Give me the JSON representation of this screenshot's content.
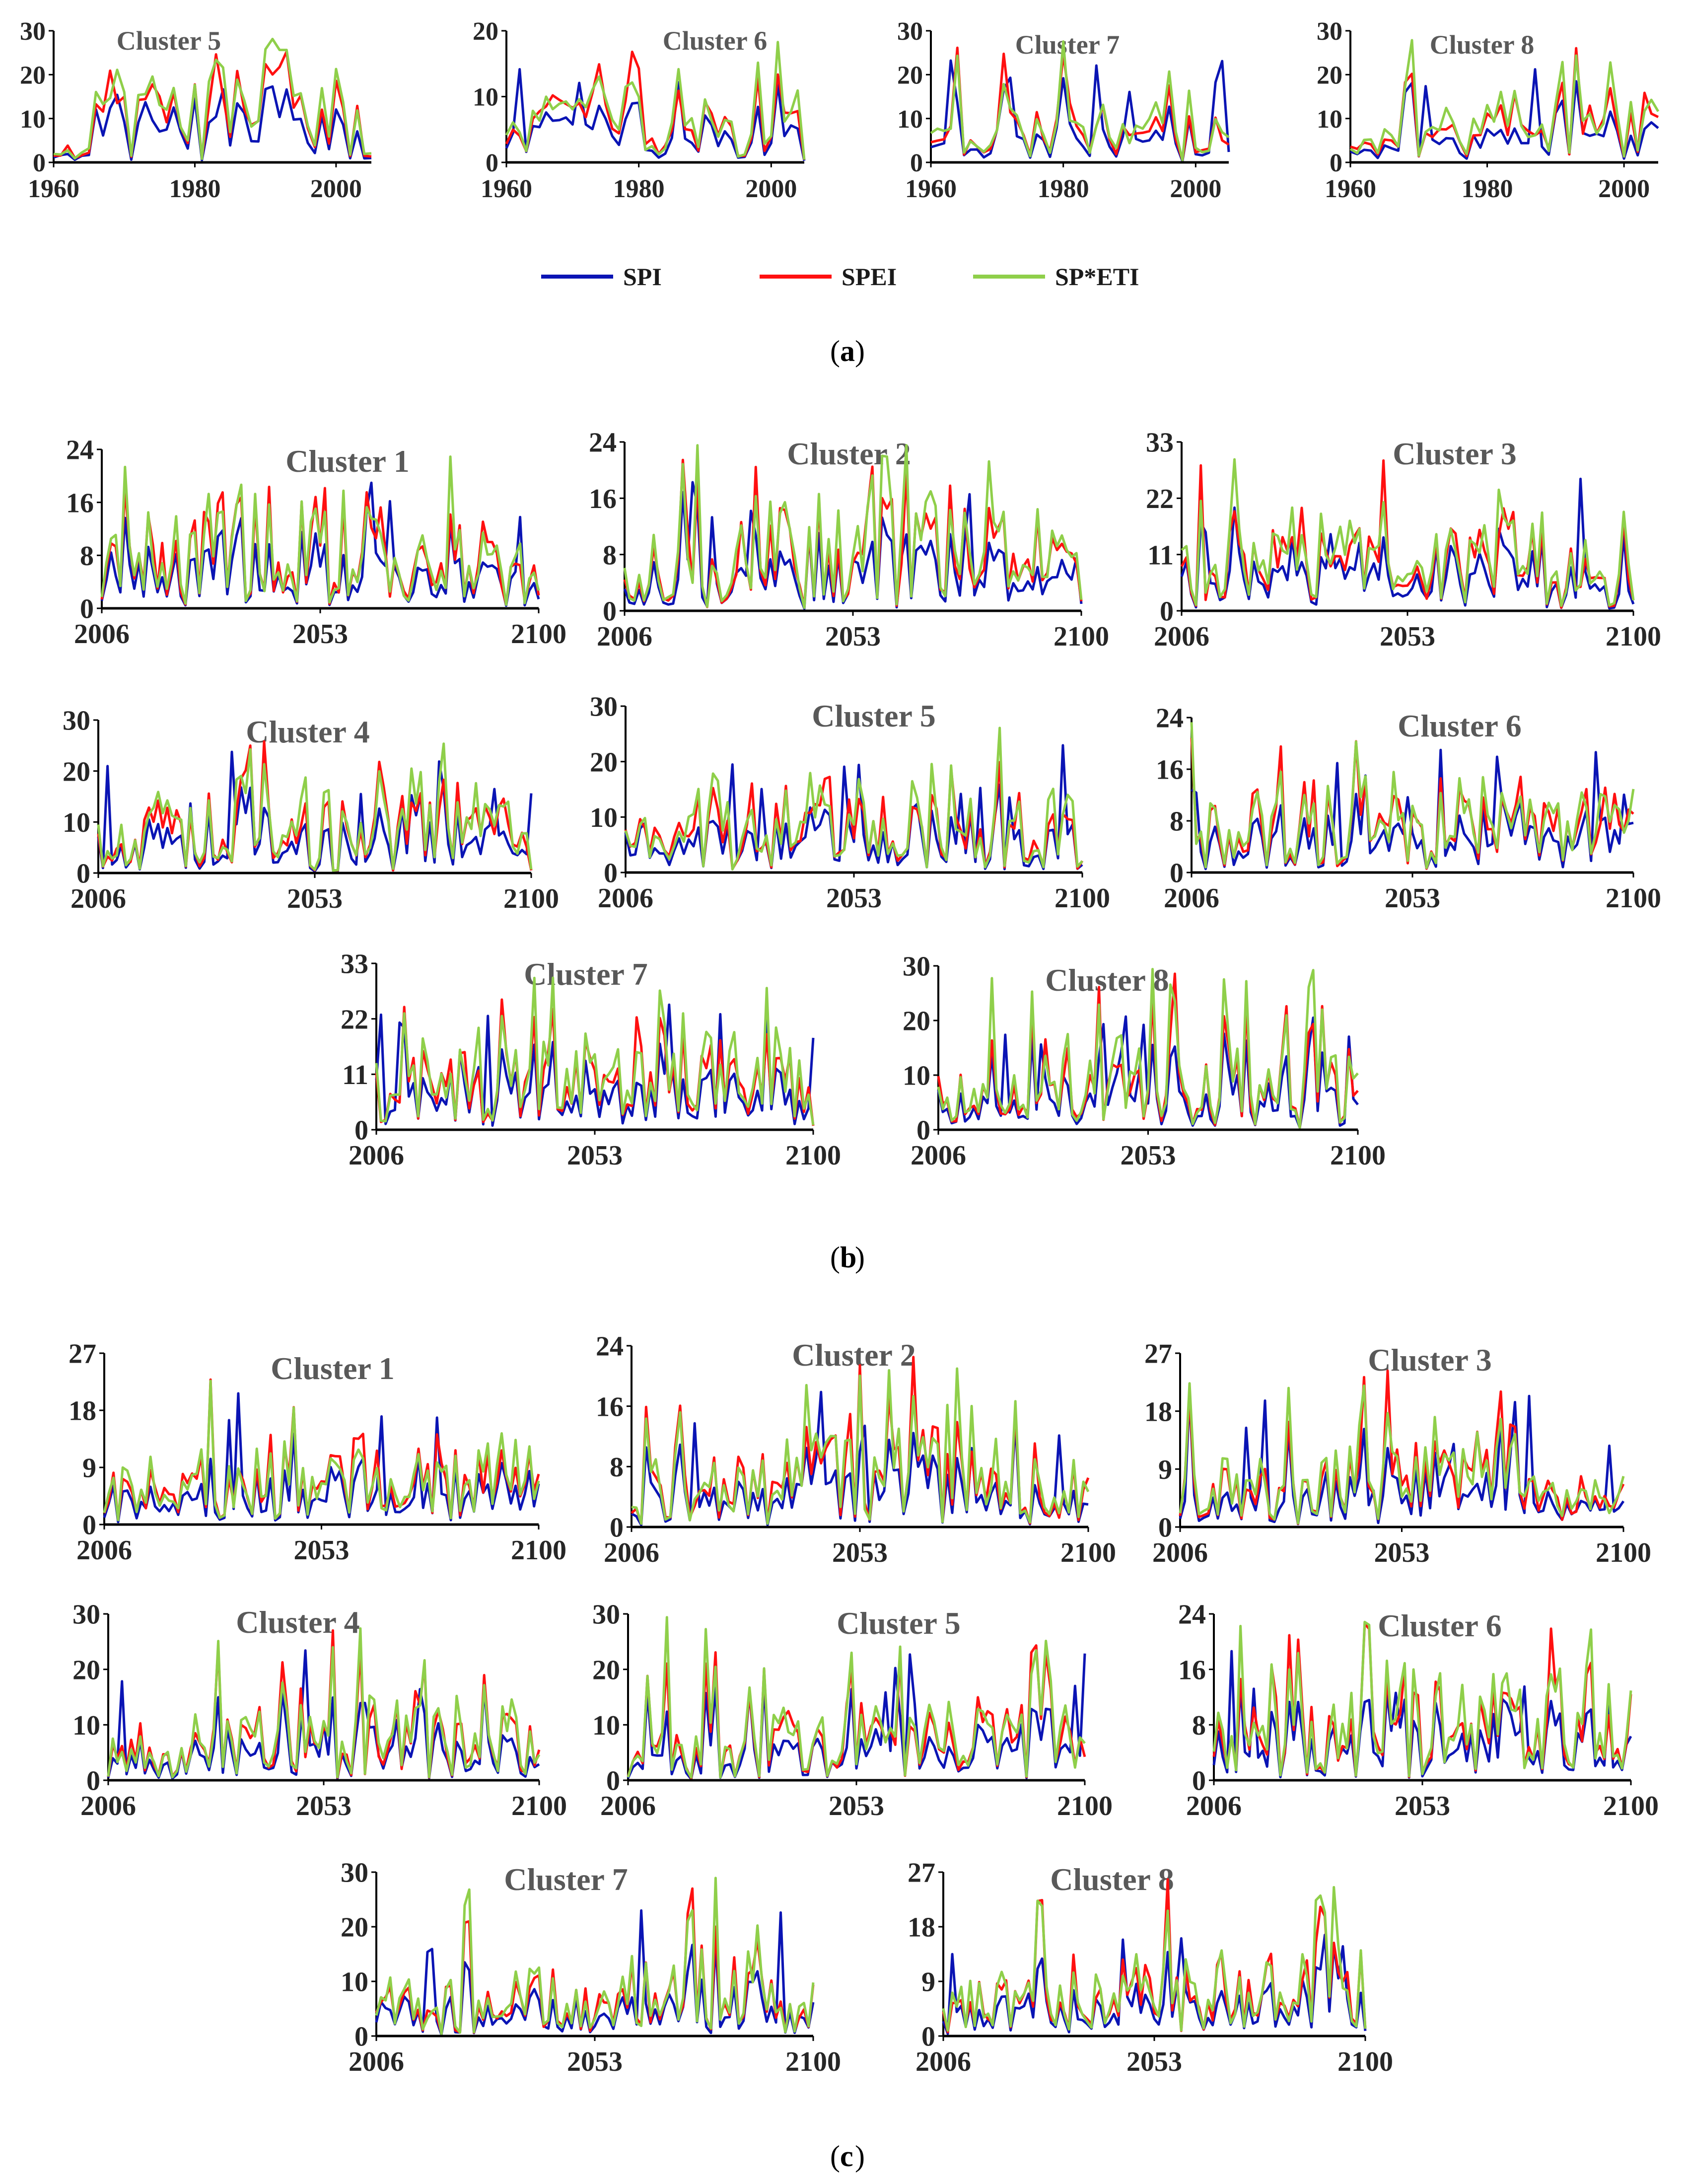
{
  "series_names": [
    "SPI",
    "SPEI",
    "SP*ETI"
  ],
  "series_colors": {
    "SPI": "#0a14b4",
    "SPEI": "#ff1010",
    "SP*ETI": "#8fcf4a"
  },
  "panel_labels": [
    "a",
    "b",
    "c"
  ],
  "chart_data": [
    {
      "type": "line",
      "panel": "a",
      "title": "Cluster 5",
      "ylim": [
        0,
        30
      ],
      "yticks": [
        0,
        10,
        20,
        30
      ],
      "xlim": [
        1960,
        2005
      ],
      "xticks": [
        1960,
        1980,
        2000
      ],
      "seed": 501,
      "profile": [
        [
          0,
          0.1
        ],
        [
          0.18,
          0.55
        ],
        [
          0.4,
          0.4
        ],
        [
          0.55,
          0.75
        ],
        [
          0.75,
          0.55
        ],
        [
          1,
          0.3
        ]
      ]
    },
    {
      "type": "line",
      "panel": "a",
      "title": "Cluster 6",
      "ylim": [
        0,
        20
      ],
      "yticks": [
        0,
        10,
        20
      ],
      "xlim": [
        1960,
        2005
      ],
      "xticks": [
        1960,
        1980,
        2000
      ],
      "seed": 601,
      "profile": [
        [
          0,
          0.25
        ],
        [
          0.2,
          0.55
        ],
        [
          0.4,
          0.55
        ],
        [
          0.7,
          0.5
        ],
        [
          1,
          0.35
        ]
      ]
    },
    {
      "type": "line",
      "panel": "a",
      "title": "Cluster 7",
      "ylim": [
        0,
        30
      ],
      "yticks": [
        0,
        10,
        20,
        30
      ],
      "xlim": [
        1960,
        2005
      ],
      "xticks": [
        1960,
        1980,
        2000
      ],
      "seed": 701,
      "profile": [
        [
          0,
          0.25
        ],
        [
          0.35,
          0.35
        ],
        [
          0.5,
          0.45
        ],
        [
          0.8,
          0.35
        ],
        [
          1,
          0.45
        ]
      ]
    },
    {
      "type": "line",
      "panel": "a",
      "title": "Cluster 8",
      "ylim": [
        0,
        30
      ],
      "yticks": [
        0,
        10,
        20,
        30
      ],
      "xlim": [
        1960,
        2005
      ],
      "xticks": [
        1960,
        1980,
        2000
      ],
      "seed": 801,
      "profile": [
        [
          0,
          0.15
        ],
        [
          0.3,
          0.3
        ],
        [
          0.55,
          0.45
        ],
        [
          0.8,
          0.35
        ],
        [
          1,
          0.45
        ]
      ]
    },
    {
      "type": "line",
      "panel": "b",
      "title": "Cluster 1",
      "ylim": [
        0,
        24
      ],
      "yticks": [
        0,
        8,
        16,
        24
      ],
      "xlim": [
        2006,
        2100
      ],
      "xticks": [
        2006,
        2053,
        2100
      ],
      "seed": 1101,
      "profile": [
        [
          0,
          0.35
        ],
        [
          0.25,
          0.55
        ],
        [
          0.5,
          0.55
        ],
        [
          0.75,
          0.4
        ],
        [
          1,
          0.45
        ]
      ]
    },
    {
      "type": "line",
      "panel": "b",
      "title": "Cluster 2",
      "ylim": [
        0,
        24
      ],
      "yticks": [
        0,
        8,
        16,
        24
      ],
      "xlim": [
        2006,
        2100
      ],
      "xticks": [
        2006,
        2053,
        2100
      ],
      "seed": 1201,
      "profile": [
        [
          0,
          0.25
        ],
        [
          0.3,
          0.45
        ],
        [
          0.55,
          0.6
        ],
        [
          0.8,
          0.45
        ],
        [
          1,
          0.4
        ]
      ]
    },
    {
      "type": "line",
      "panel": "b",
      "title": "Cluster 3",
      "ylim": [
        0,
        33
      ],
      "yticks": [
        0,
        11,
        22,
        33
      ],
      "xlim": [
        2006,
        2100
      ],
      "xticks": [
        2006,
        2053,
        2100
      ],
      "seed": 1301,
      "profile": [
        [
          0,
          0.35
        ],
        [
          0.25,
          0.45
        ],
        [
          0.5,
          0.4
        ],
        [
          0.75,
          0.5
        ],
        [
          1,
          0.25
        ]
      ]
    },
    {
      "type": "line",
      "panel": "b",
      "title": "Cluster 4",
      "ylim": [
        0,
        30
      ],
      "yticks": [
        0,
        10,
        20,
        30
      ],
      "xlim": [
        2006,
        2100
      ],
      "xticks": [
        2006,
        2053,
        2100
      ],
      "seed": 1401,
      "profile": [
        [
          0,
          0.3
        ],
        [
          0.3,
          0.5
        ],
        [
          0.55,
          0.4
        ],
        [
          0.75,
          0.55
        ],
        [
          1,
          0.35
        ]
      ]
    },
    {
      "type": "line",
      "panel": "b",
      "title": "Cluster 5",
      "ylim": [
        0,
        30
      ],
      "yticks": [
        0,
        10,
        20,
        30
      ],
      "xlim": [
        2006,
        2100
      ],
      "xticks": [
        2006,
        2053,
        2100
      ],
      "seed": 1501,
      "profile": [
        [
          0,
          0.3
        ],
        [
          0.3,
          0.45
        ],
        [
          0.55,
          0.4
        ],
        [
          0.75,
          0.5
        ],
        [
          1,
          0.35
        ]
      ]
    },
    {
      "type": "line",
      "panel": "b",
      "title": "Cluster 6",
      "ylim": [
        0,
        24
      ],
      "yticks": [
        0,
        8,
        16,
        24
      ],
      "xlim": [
        2006,
        2100
      ],
      "xticks": [
        2006,
        2053,
        2100
      ],
      "seed": 1601,
      "profile": [
        [
          0,
          0.35
        ],
        [
          0.3,
          0.45
        ],
        [
          0.55,
          0.45
        ],
        [
          0.8,
          0.5
        ],
        [
          1,
          0.35
        ]
      ]
    },
    {
      "type": "line",
      "panel": "b",
      "title": "Cluster 7",
      "ylim": [
        0,
        33
      ],
      "yticks": [
        0,
        11,
        22,
        33
      ],
      "xlim": [
        2006,
        2100
      ],
      "xticks": [
        2006,
        2053,
        2100
      ],
      "seed": 1701,
      "profile": [
        [
          0,
          0.35
        ],
        [
          0.3,
          0.45
        ],
        [
          0.55,
          0.45
        ],
        [
          0.8,
          0.5
        ],
        [
          1,
          0.35
        ]
      ]
    },
    {
      "type": "line",
      "panel": "b",
      "title": "Cluster 8",
      "ylim": [
        0,
        30
      ],
      "yticks": [
        0,
        10,
        20,
        30
      ],
      "xlim": [
        2006,
        2100
      ],
      "xticks": [
        2006,
        2053,
        2100
      ],
      "seed": 1801,
      "profile": [
        [
          0,
          0.25
        ],
        [
          0.3,
          0.4
        ],
        [
          0.55,
          0.4
        ],
        [
          0.8,
          0.4
        ],
        [
          1,
          0.35
        ]
      ]
    },
    {
      "type": "line",
      "panel": "c",
      "title": "Cluster 1",
      "ylim": [
        0,
        27
      ],
      "yticks": [
        0,
        9,
        18,
        27
      ],
      "xlim": [
        2006,
        2100
      ],
      "xticks": [
        2006,
        2053,
        2100
      ],
      "seed": 2101,
      "profile": [
        [
          0,
          0.25
        ],
        [
          0.3,
          0.35
        ],
        [
          0.55,
          0.4
        ],
        [
          0.8,
          0.4
        ],
        [
          1,
          0.35
        ]
      ]
    },
    {
      "type": "line",
      "panel": "c",
      "title": "Cluster 2",
      "ylim": [
        0,
        24
      ],
      "yticks": [
        0,
        8,
        16,
        24
      ],
      "xlim": [
        2006,
        2100
      ],
      "xticks": [
        2006,
        2053,
        2100
      ],
      "seed": 2201,
      "profile": [
        [
          0,
          0.3
        ],
        [
          0.3,
          0.4
        ],
        [
          0.55,
          0.5
        ],
        [
          0.8,
          0.45
        ],
        [
          1,
          0.3
        ]
      ]
    },
    {
      "type": "line",
      "panel": "c",
      "title": "Cluster 3",
      "ylim": [
        0,
        27
      ],
      "yticks": [
        0,
        9,
        18,
        27
      ],
      "xlim": [
        2006,
        2100
      ],
      "xticks": [
        2006,
        2053,
        2100
      ],
      "seed": 2301,
      "profile": [
        [
          0,
          0.25
        ],
        [
          0.3,
          0.35
        ],
        [
          0.55,
          0.45
        ],
        [
          0.8,
          0.4
        ],
        [
          1,
          0.25
        ]
      ]
    },
    {
      "type": "line",
      "panel": "c",
      "title": "Cluster 4",
      "ylim": [
        0,
        30
      ],
      "yticks": [
        0,
        10,
        20,
        30
      ],
      "xlim": [
        2006,
        2100
      ],
      "xticks": [
        2006,
        2053,
        2100
      ],
      "seed": 2401,
      "profile": [
        [
          0,
          0.25
        ],
        [
          0.3,
          0.35
        ],
        [
          0.55,
          0.45
        ],
        [
          0.8,
          0.4
        ],
        [
          1,
          0.3
        ]
      ]
    },
    {
      "type": "line",
      "panel": "c",
      "title": "Cluster 5",
      "ylim": [
        0,
        30
      ],
      "yticks": [
        0,
        10,
        20,
        30
      ],
      "xlim": [
        2006,
        2100
      ],
      "xticks": [
        2006,
        2053,
        2100
      ],
      "seed": 2501,
      "profile": [
        [
          0,
          0.25
        ],
        [
          0.3,
          0.35
        ],
        [
          0.55,
          0.35
        ],
        [
          0.8,
          0.4
        ],
        [
          1,
          0.3
        ]
      ]
    },
    {
      "type": "line",
      "panel": "c",
      "title": "Cluster 6",
      "ylim": [
        0,
        24
      ],
      "yticks": [
        0,
        8,
        16,
        24
      ],
      "xlim": [
        2006,
        2100
      ],
      "xticks": [
        2006,
        2053,
        2100
      ],
      "seed": 2601,
      "profile": [
        [
          0,
          0.35
        ],
        [
          0.3,
          0.4
        ],
        [
          0.55,
          0.5
        ],
        [
          0.8,
          0.45
        ],
        [
          1,
          0.4
        ]
      ]
    },
    {
      "type": "line",
      "panel": "c",
      "title": "Cluster 7",
      "ylim": [
        0,
        30
      ],
      "yticks": [
        0,
        10,
        20,
        30
      ],
      "xlim": [
        2006,
        2100
      ],
      "xticks": [
        2006,
        2053,
        2100
      ],
      "seed": 2701,
      "profile": [
        [
          0,
          0.3
        ],
        [
          0.3,
          0.3
        ],
        [
          0.55,
          0.35
        ],
        [
          0.8,
          0.45
        ],
        [
          1,
          0.35
        ]
      ]
    },
    {
      "type": "line",
      "panel": "c",
      "title": "Cluster 8",
      "ylim": [
        0,
        27
      ],
      "yticks": [
        0,
        9,
        18,
        27
      ],
      "xlim": [
        2006,
        2100
      ],
      "xticks": [
        2006,
        2053,
        2100
      ],
      "seed": 2801,
      "profile": [
        [
          0,
          0.25
        ],
        [
          0.3,
          0.4
        ],
        [
          0.55,
          0.35
        ],
        [
          0.8,
          0.45
        ],
        [
          1,
          0.35
        ]
      ]
    }
  ]
}
